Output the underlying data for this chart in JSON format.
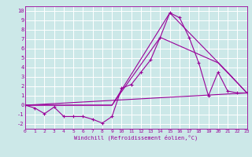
{
  "xlabel": "Windchill (Refroidissement éolien,°C)",
  "xlim": [
    0,
    23
  ],
  "ylim": [
    -2.5,
    10.5
  ],
  "xticks": [
    0,
    1,
    2,
    3,
    4,
    5,
    6,
    7,
    8,
    9,
    10,
    11,
    12,
    13,
    14,
    15,
    16,
    17,
    18,
    19,
    20,
    21,
    22,
    23
  ],
  "yticks": [
    -2,
    -1,
    0,
    1,
    2,
    3,
    4,
    5,
    6,
    7,
    8,
    9,
    10
  ],
  "bg_color": "#cce8e8",
  "grid_color": "#ffffff",
  "line_color": "#990099",
  "series_main": {
    "x": [
      0,
      1,
      2,
      3,
      4,
      5,
      6,
      7,
      8,
      9,
      10,
      11,
      12,
      13,
      14,
      15,
      16,
      17,
      18,
      19,
      20,
      21,
      22,
      23
    ],
    "y": [
      0.0,
      -0.3,
      -0.9,
      -0.2,
      -1.2,
      -1.2,
      -1.2,
      -1.5,
      -1.9,
      -1.2,
      1.8,
      2.2,
      3.5,
      4.8,
      7.2,
      9.8,
      9.3,
      7.2,
      4.5,
      1.0,
      3.5,
      1.5,
      1.3,
      1.3
    ]
  },
  "series_smooth": [
    {
      "x": [
        0,
        9,
        15,
        21,
        23
      ],
      "y": [
        0.0,
        0.0,
        9.8,
        3.5,
        1.3
      ]
    },
    {
      "x": [
        0,
        9,
        14,
        20,
        23
      ],
      "y": [
        0.0,
        0.0,
        7.2,
        4.5,
        1.3
      ]
    },
    {
      "x": [
        0,
        23
      ],
      "y": [
        0.0,
        1.3
      ]
    }
  ],
  "figsize": [
    3.2,
    2.0
  ],
  "dpi": 100
}
